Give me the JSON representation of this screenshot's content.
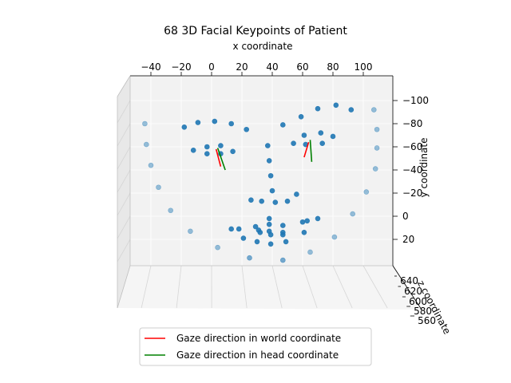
{
  "chart_data": {
    "type": "scatter",
    "title": "68 3D Facial Keypoints of Patient",
    "xlabel": "x coordinate",
    "ylabel": "y coordinate",
    "zlabel": "z coordinate",
    "x_ticks": [
      "−40",
      "−20",
      "0",
      "20",
      "40",
      "60",
      "80",
      "100"
    ],
    "y_ticks": [
      "−100",
      "−80",
      "−60",
      "−40",
      "−20",
      "0",
      "20"
    ],
    "z_ticks": [
      "640",
      "620",
      "600",
      "580",
      "560"
    ],
    "legend": [
      {
        "label": "Gaze direction in world coordinate",
        "color": "#ff0000"
      },
      {
        "label": "Gaze direction in head coordinate",
        "color": "#008000"
      }
    ],
    "point_color": "#1f77b4",
    "points": [
      [
        -44,
        -80,
        0.45
      ],
      [
        -43,
        -62,
        0.45
      ],
      [
        -40,
        -44,
        0.45
      ],
      [
        -35,
        -25,
        0.45
      ],
      [
        -27,
        -5,
        0.45
      ],
      [
        -14,
        13,
        0.45
      ],
      [
        4,
        27,
        0.45
      ],
      [
        25,
        36,
        0.6
      ],
      [
        47,
        38,
        0.6
      ],
      [
        65,
        31,
        0.45
      ],
      [
        81,
        18,
        0.45
      ],
      [
        93,
        -2,
        0.45
      ],
      [
        102,
        -21,
        0.45
      ],
      [
        108,
        -41,
        0.45
      ],
      [
        109,
        -59,
        0.45
      ],
      [
        109,
        -75,
        0.45
      ],
      [
        107,
        -92,
        0.45
      ],
      [
        -18,
        -77,
        0.9
      ],
      [
        -9,
        -81,
        0.9
      ],
      [
        2,
        -82,
        0.9
      ],
      [
        13,
        -80,
        0.9
      ],
      [
        23,
        -75,
        0.9
      ],
      [
        47,
        -79,
        0.9
      ],
      [
        59,
        -86,
        0.9
      ],
      [
        70,
        -93,
        0.9
      ],
      [
        82,
        -96,
        0.9
      ],
      [
        92,
        -92,
        0.9
      ],
      [
        37,
        -61,
        0.9
      ],
      [
        38,
        -48,
        0.9
      ],
      [
        39,
        -35,
        0.9
      ],
      [
        40,
        -22,
        0.9
      ],
      [
        26,
        -14,
        0.9
      ],
      [
        33,
        -13,
        0.9
      ],
      [
        42,
        -12,
        0.9
      ],
      [
        50,
        -13,
        0.9
      ],
      [
        56,
        -19,
        0.9
      ],
      [
        -12,
        -57,
        0.9
      ],
      [
        -3,
        -60,
        0.9
      ],
      [
        6,
        -61,
        0.9
      ],
      [
        14,
        -56,
        0.9
      ],
      [
        6,
        -54,
        0.9
      ],
      [
        -3,
        -54,
        0.9
      ],
      [
        54,
        -63,
        0.9
      ],
      [
        61,
        -70,
        0.9
      ],
      [
        72,
        -72,
        0.9
      ],
      [
        80,
        -69,
        0.9
      ],
      [
        73,
        -63,
        0.9
      ],
      [
        62,
        -62,
        0.9
      ],
      [
        13,
        11,
        0.9
      ],
      [
        18,
        11,
        0.9
      ],
      [
        29,
        9,
        0.9
      ],
      [
        38,
        7,
        0.9
      ],
      [
        47,
        8,
        0.9
      ],
      [
        60,
        5,
        0.9
      ],
      [
        70,
        2,
        0.9
      ],
      [
        61,
        14,
        0.9
      ],
      [
        49,
        22,
        0.9
      ],
      [
        39,
        24,
        0.9
      ],
      [
        30,
        22,
        0.9
      ],
      [
        21,
        19,
        0.9
      ],
      [
        31,
        12,
        0.9
      ],
      [
        38,
        13,
        0.9
      ],
      [
        47,
        14,
        0.9
      ],
      [
        63,
        4,
        0.9
      ],
      [
        47,
        16,
        0.9
      ],
      [
        39,
        16,
        0.9
      ],
      [
        32,
        14,
        0.9
      ],
      [
        38,
        2,
        0.9
      ]
    ],
    "gaze_world": [
      [
        3,
        -58,
        6,
        -43
      ],
      [
        64,
        -64,
        61,
        -51
      ]
    ],
    "gaze_head": [
      [
        4,
        -59,
        9,
        -40
      ],
      [
        65,
        -66,
        66,
        -47
      ]
    ]
  }
}
